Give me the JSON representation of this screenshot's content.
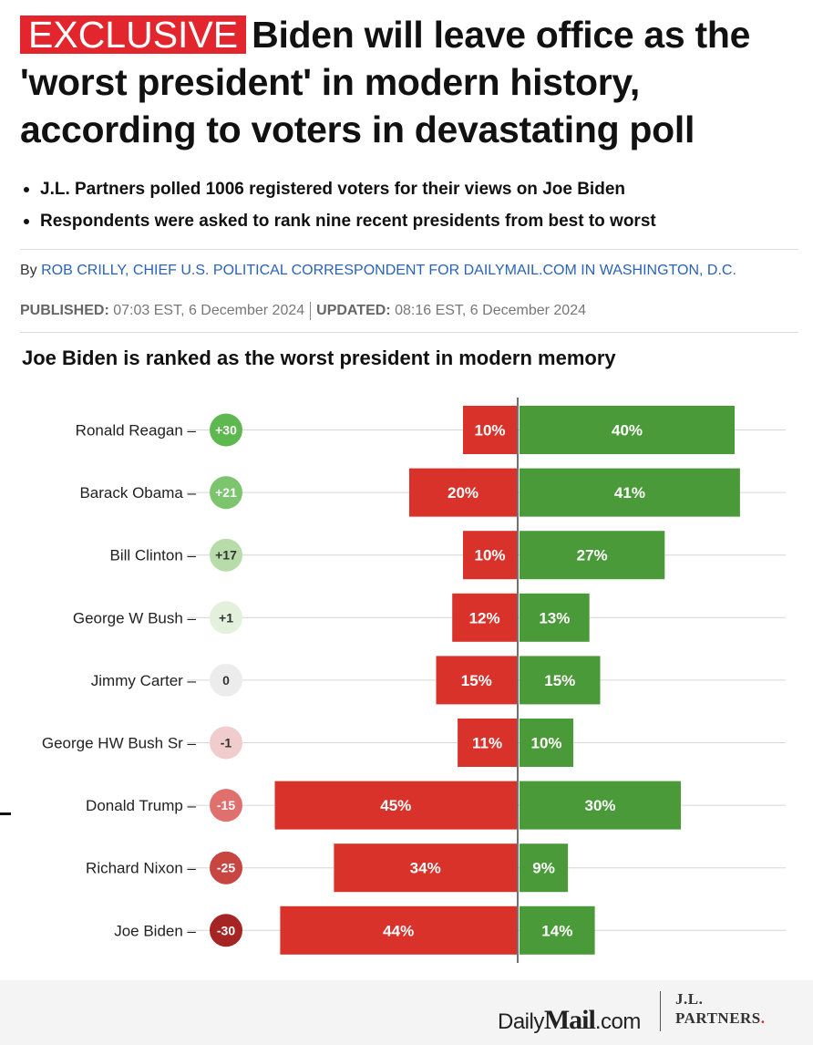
{
  "article": {
    "badge": "EXCLUSIVE",
    "headline": "Biden will leave office as the 'worst president' in modern history, according to voters in devastating poll",
    "bullets": [
      "J.L. Partners polled 1006 registered voters for their views on Joe Biden",
      "Respondents were asked to rank nine recent presidents from best to worst"
    ],
    "byline_prefix": "By",
    "author": "ROB CRILLY, CHIEF U.S. POLITICAL CORRESPONDENT FOR DAILYMAIL.COM IN WASHINGTON, D.C.",
    "published_label": "PUBLISHED:",
    "published_value": "07:03 EST, 6 December 2024",
    "updated_label": "UPDATED:",
    "updated_value": "08:16 EST, 6 December 2024"
  },
  "footer": {
    "dm_daily": "Daily",
    "dm_mail": "Mail",
    "dm_com": ".com",
    "jl_line1": "J.L.",
    "jl_line2": "PARTNERS",
    "jl_dot": "."
  },
  "chart_data": {
    "type": "bar",
    "title": "Joe Biden is ranked as the worst president in modern memory",
    "categories": [
      "Ronald Reagan",
      "Barack Obama",
      "Bill Clinton",
      "George W Bush",
      "Jimmy Carter",
      "George HW Bush Sr",
      "Donald Trump",
      "Richard Nixon",
      "Joe Biden"
    ],
    "net": [
      "+30",
      "+21",
      "+17",
      "+1",
      "0",
      "-1",
      "-15",
      "-25",
      "-30"
    ],
    "series": [
      {
        "values": [
          10,
          20,
          10,
          12,
          15,
          11,
          45,
          34,
          44
        ],
        "color": "#d9322b",
        "direction": "left"
      },
      {
        "values": [
          40,
          41,
          27,
          13,
          15,
          10,
          30,
          9,
          14
        ],
        "color": "#4a9a3a",
        "direction": "right"
      }
    ],
    "value_suffix": "%",
    "net_colors": [
      "#5cb84f",
      "#7cc46e",
      "#b7dca9",
      "#e3f0dc",
      "#ececec",
      "#f0cccc",
      "#e0706d",
      "#c84641",
      "#a42523"
    ],
    "net_text_colors": [
      "#ffffff",
      "#ffffff",
      "#333333",
      "#333333",
      "#333333",
      "#333333",
      "#ffffff",
      "#ffffff",
      "#ffffff"
    ]
  }
}
